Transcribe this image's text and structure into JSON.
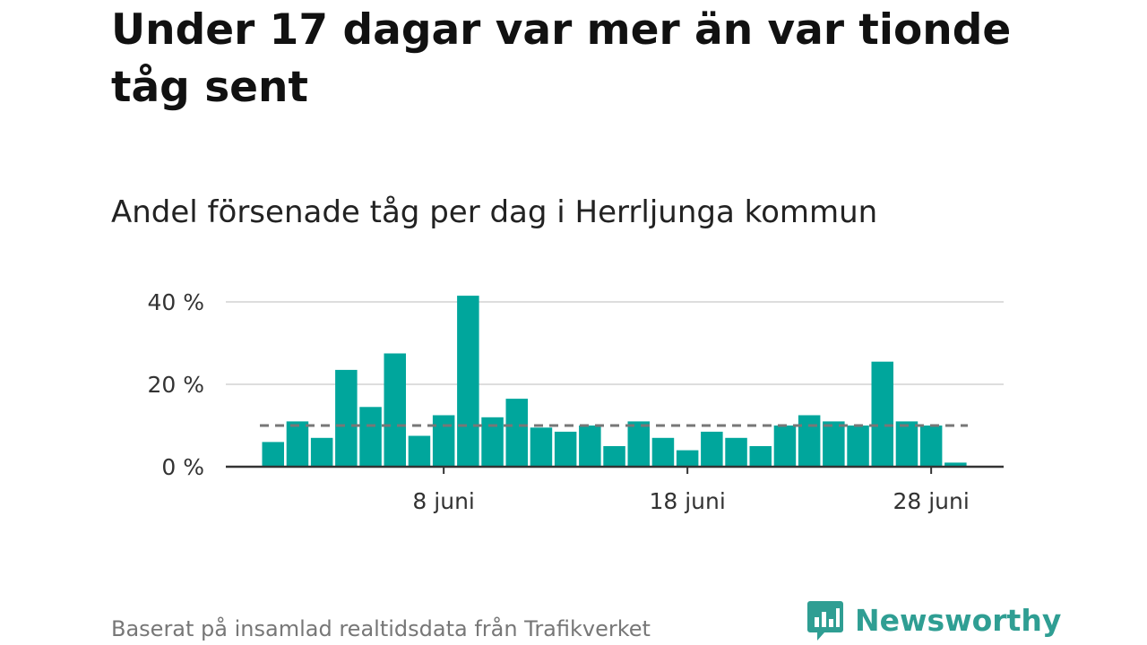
{
  "title": "Under 17 dagar var mer än var tionde tåg sent",
  "subtitle": "Andel försenade tåg per dag i Herrljunga kommun",
  "source": "Baserat på insamlad realtidsdata från Trafikverket",
  "brand": {
    "name": "Newsworthy",
    "icon": "newsworthy-chart-bubble-icon"
  },
  "colors": {
    "bar": "#00a69c",
    "reference_line": "#777777",
    "gridline": "#dddddd",
    "axis": "#333333",
    "brand": "#2f9e93"
  },
  "chart_data": {
    "type": "bar",
    "title": "Andel försenade tåg per dag i Herrljunga kommun",
    "xlabel": "",
    "ylabel": "",
    "unit": "%",
    "x_start_day": 1,
    "categories": [
      "1 juni",
      "2 juni",
      "3 juni",
      "4 juni",
      "5 juni",
      "6 juni",
      "7 juni",
      "8 juni",
      "9 juni",
      "10 juni",
      "11 juni",
      "12 juni",
      "13 juni",
      "14 juni",
      "15 juni",
      "16 juni",
      "17 juni",
      "18 juni",
      "19 juni",
      "20 juni",
      "21 juni",
      "22 juni",
      "23 juni",
      "24 juni",
      "25 juni",
      "26 juni",
      "27 juni",
      "28 juni",
      "29 juni"
    ],
    "values": [
      6,
      11,
      7,
      23.5,
      14.5,
      27.5,
      7.5,
      12.5,
      41.5,
      12,
      16.5,
      9.5,
      8.5,
      10,
      5,
      11,
      7,
      4,
      8.5,
      7,
      5,
      10,
      12.5,
      11,
      10,
      25.5,
      11,
      10,
      1
    ],
    "reference_line": {
      "value": 10,
      "style": "dashed"
    },
    "ylim": [
      0,
      45
    ],
    "yticks": [
      {
        "value": 0,
        "label": "0 %"
      },
      {
        "value": 20,
        "label": "20 %"
      },
      {
        "value": 40,
        "label": "40 %"
      }
    ],
    "xticks": [
      {
        "day": 8,
        "label": "8 juni"
      },
      {
        "day": 18,
        "label": "18 juni"
      },
      {
        "day": 28,
        "label": "28 juni"
      }
    ],
    "grid": true
  }
}
